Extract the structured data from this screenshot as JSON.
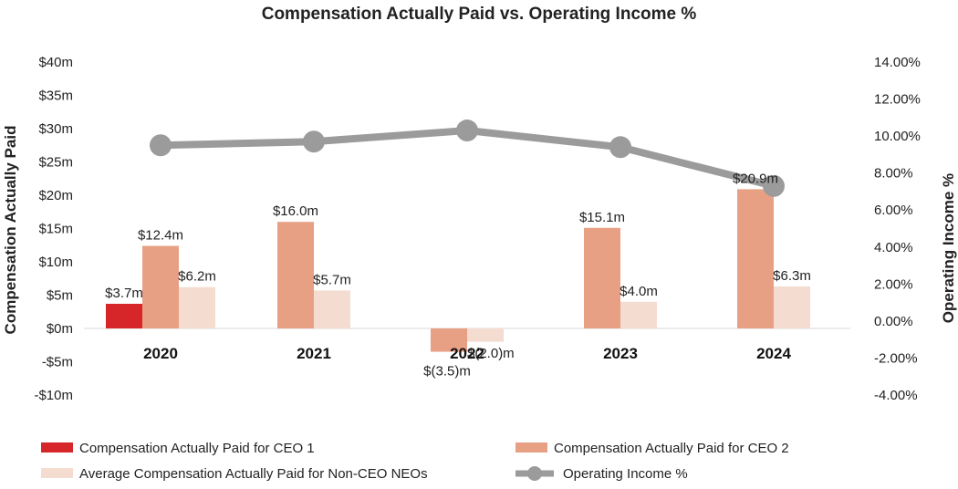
{
  "chart_data": {
    "type": "bar",
    "title": "Compensation Actually Paid vs. Operating Income %",
    "ylabel": "Compensation Actually Paid",
    "y2label": "Operating Income %",
    "categories": [
      "2020",
      "2021",
      "2022",
      "2023",
      "2024"
    ],
    "ylim": [
      -10,
      40
    ],
    "yticks": [
      -10,
      -5,
      0,
      5,
      10,
      15,
      20,
      25,
      30,
      35,
      40
    ],
    "ytick_labels": [
      "-$10m",
      "-$5m",
      "$0m",
      "$5m",
      "$10m",
      "$15m",
      "$20m",
      "$25m",
      "$30m",
      "$35m",
      "$40m"
    ],
    "y2lim": [
      -4,
      14
    ],
    "y2ticks": [
      -4,
      -2,
      0,
      2,
      4,
      6,
      8,
      10,
      12,
      14
    ],
    "y2tick_labels": [
      "-4.00%",
      "-2.00%",
      "0.00%",
      "2.00%",
      "4.00%",
      "6.00%",
      "8.00%",
      "10.00%",
      "12.00%",
      "14.00%"
    ],
    "series": [
      {
        "name": "Compensation Actually Paid for CEO 1",
        "type": "bar",
        "color": "#d7262a",
        "values": [
          3.7,
          null,
          null,
          null,
          null
        ],
        "labels": [
          "$3.7m",
          null,
          null,
          null,
          null
        ]
      },
      {
        "name": "Compensation Actually Paid for CEO 2",
        "type": "bar",
        "color": "#e8a085",
        "values": [
          12.4,
          16.0,
          -3.5,
          15.1,
          20.9
        ],
        "labels": [
          "$12.4m",
          "$16.0m",
          "$(3.5)m",
          "$15.1m",
          "$20.9m"
        ]
      },
      {
        "name": "Average Compensation Actually Paid for Non-CEO NEOs",
        "type": "bar",
        "color": "#f4dcd0",
        "values": [
          6.2,
          5.7,
          -2.0,
          4.0,
          6.3
        ],
        "labels": [
          "$6.2m",
          "$5.7m",
          "$(2.0)m",
          "$4.0m",
          "$6.3m"
        ]
      },
      {
        "name": "Operating Income %",
        "type": "line",
        "axis": "right",
        "color": "#9b9b9b",
        "values": [
          9.5,
          9.7,
          10.3,
          9.4,
          7.3
        ]
      }
    ],
    "legend": "bottom"
  }
}
